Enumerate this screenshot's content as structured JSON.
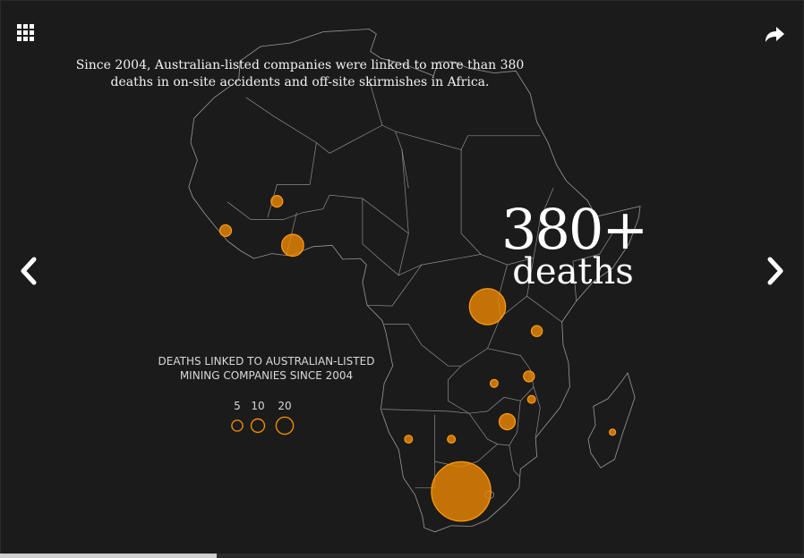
{
  "headline": "Since 2004, Australian-listed companies were linked to more than 380 deaths in on-site accidents and off-site skirmishes in Africa.",
  "stat": {
    "value": "380+",
    "unit": "deaths"
  },
  "legend": {
    "title": "DEATHS LINKED TO AUSTRALIAN-LISTED MINING COMPANIES SINCE 2004",
    "keys": [
      {
        "label": "5",
        "deaths": 5
      },
      {
        "label": "10",
        "deaths": 10
      },
      {
        "label": "20",
        "deaths": 20
      }
    ]
  },
  "colors": {
    "background": "#1b1b1b",
    "bubble": "#f28c00",
    "borders": "#9a9a9a",
    "text": "#f2f2f2"
  },
  "icons": {
    "menu": "grid-icon",
    "share": "share-arrow-icon",
    "prev": "chevron-left-icon",
    "next": "chevron-right-icon"
  },
  "progress": 0.27,
  "bubbles": [
    {
      "lon": -4.0,
      "lat": 12.6,
      "deaths": 6
    },
    {
      "lon": -11.8,
      "lat": 8.4,
      "deaths": 6
    },
    {
      "lon": -1.6,
      "lat": 6.3,
      "deaths": 27
    },
    {
      "lon": 28.0,
      "lat": -2.5,
      "deaths": 80
    },
    {
      "lon": 35.5,
      "lat": -6.0,
      "deaths": 5
    },
    {
      "lon": 34.3,
      "lat": -12.5,
      "deaths": 5
    },
    {
      "lon": 29.0,
      "lat": -13.5,
      "deaths": 2
    },
    {
      "lon": 34.7,
      "lat": -15.8,
      "deaths": 2
    },
    {
      "lon": 31.0,
      "lat": -19.0,
      "deaths": 13
    },
    {
      "lon": 47.0,
      "lat": -20.5,
      "deaths": 1
    },
    {
      "lon": 16.0,
      "lat": -21.5,
      "deaths": 2
    },
    {
      "lon": 22.5,
      "lat": -21.5,
      "deaths": 2
    },
    {
      "lon": 24.0,
      "lat": -29.0,
      "deaths": 230
    }
  ]
}
